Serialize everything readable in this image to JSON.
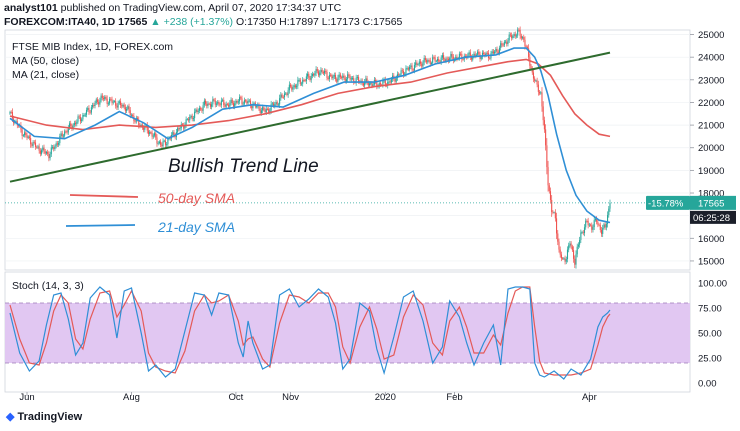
{
  "header": {
    "publisher": "analyst101",
    "published_text": "published on TradingView.com, April 07, 2020 17:34:37 UTC",
    "symbol": "FOREXCOM:ITA40, 1D",
    "last": "17565",
    "change": "▲ +238 (+1.37%)",
    "ohlc_text": "O:17350 H:17897 L:17173 C:17565"
  },
  "legend": {
    "title": "FTSE MIB Index, 1D, FOREX.com",
    "ma50": "MA (50, close)",
    "ma21": "MA (21, close)"
  },
  "annotations": {
    "trend_line": "Bullish Trend Line",
    "sma50": "50-day SMA",
    "sma21": "21-day SMA"
  },
  "stoch_label": "Stoch (14, 3, 3)",
  "badges": {
    "pct": "-15.78%",
    "price": "17565",
    "countdown": "06:25:28"
  },
  "footer": {
    "brand": "TradingView"
  },
  "colors": {
    "up": "#26a69a",
    "down": "#ef5350",
    "ma50": "#e45a58",
    "ma21": "#2f8fd6",
    "trend": "#2e6b2e",
    "stoch_k": "#2f8fd6",
    "stoch_d": "#e45a58",
    "stoch_band": "#e1c7f2",
    "badge_bg": "#26a69a",
    "countdown_bg": "#1b1f2a"
  },
  "chart_data": [
    {
      "type": "candlestick",
      "title": "FTSE MIB Index, 1D, FOREX.com",
      "x_ticks": [
        "Jun",
        "Aug",
        "Oct",
        "Nov",
        "2020",
        "Feb",
        "Apr"
      ],
      "y_ticks": [
        15000,
        16000,
        17000,
        18000,
        19000,
        20000,
        21000,
        22000,
        23000,
        24000,
        25000
      ],
      "ylim": [
        14600,
        25200
      ],
      "last_price": 17565,
      "close_path": [
        [
          0,
          21500
        ],
        [
          10,
          20700
        ],
        [
          22,
          20000
        ],
        [
          32,
          19700
        ],
        [
          45,
          20700
        ],
        [
          60,
          21400
        ],
        [
          75,
          22200
        ],
        [
          85,
          22000
        ],
        [
          95,
          21800
        ],
        [
          105,
          21100
        ],
        [
          115,
          20700
        ],
        [
          125,
          20100
        ],
        [
          135,
          20600
        ],
        [
          148,
          21300
        ],
        [
          160,
          21900
        ],
        [
          170,
          22000
        ],
        [
          180,
          21900
        ],
        [
          190,
          22100
        ],
        [
          200,
          21900
        ],
        [
          210,
          21600
        ],
        [
          220,
          22000
        ],
        [
          230,
          22600
        ],
        [
          242,
          23000
        ],
        [
          255,
          23400
        ],
        [
          265,
          23100
        ],
        [
          278,
          23100
        ],
        [
          290,
          22900
        ],
        [
          302,
          22800
        ],
        [
          312,
          22900
        ],
        [
          325,
          23400
        ],
        [
          340,
          23800
        ],
        [
          355,
          23900
        ],
        [
          370,
          24000
        ],
        [
          385,
          24100
        ],
        [
          396,
          24100
        ],
        [
          403,
          24400
        ],
        [
          410,
          24800
        ],
        [
          418,
          25100
        ],
        [
          423,
          24800
        ],
        [
          426,
          24200
        ],
        [
          430,
          23300
        ],
        [
          433,
          22800
        ],
        [
          437,
          22400
        ],
        [
          440,
          20700
        ],
        [
          443,
          18500
        ],
        [
          446,
          17200
        ],
        [
          449,
          16900
        ],
        [
          452,
          15400
        ],
        [
          455,
          15000
        ],
        [
          458,
          15200
        ],
        [
          461,
          15800
        ],
        [
          465,
          15000
        ],
        [
          470,
          16200
        ],
        [
          475,
          16700
        ],
        [
          479,
          16500
        ],
        [
          483,
          16800
        ],
        [
          487,
          16300
        ],
        [
          490,
          16500
        ],
        [
          494,
          17565
        ]
      ],
      "ma21": [
        [
          0,
          21300
        ],
        [
          20,
          20500
        ],
        [
          45,
          20400
        ],
        [
          70,
          21000
        ],
        [
          90,
          21600
        ],
        [
          110,
          21100
        ],
        [
          130,
          20400
        ],
        [
          150,
          20900
        ],
        [
          175,
          21700
        ],
        [
          200,
          21900
        ],
        [
          225,
          21800
        ],
        [
          250,
          22400
        ],
        [
          275,
          22900
        ],
        [
          300,
          22900
        ],
        [
          325,
          23200
        ],
        [
          350,
          23700
        ],
        [
          375,
          24000
        ],
        [
          400,
          24100
        ],
        [
          415,
          24400
        ],
        [
          425,
          24400
        ],
        [
          432,
          24000
        ],
        [
          437,
          23400
        ],
        [
          443,
          22300
        ],
        [
          450,
          20600
        ],
        [
          458,
          19000
        ],
        [
          466,
          17900
        ],
        [
          475,
          17200
        ],
        [
          485,
          16800
        ],
        [
          494,
          16700
        ]
      ],
      "ma50": [
        [
          0,
          21400
        ],
        [
          30,
          21000
        ],
        [
          60,
          20800
        ],
        [
          90,
          21000
        ],
        [
          120,
          20900
        ],
        [
          150,
          21000
        ],
        [
          180,
          21200
        ],
        [
          210,
          21500
        ],
        [
          240,
          21900
        ],
        [
          270,
          22400
        ],
        [
          300,
          22700
        ],
        [
          330,
          22900
        ],
        [
          360,
          23300
        ],
        [
          390,
          23600
        ],
        [
          410,
          23800
        ],
        [
          425,
          23900
        ],
        [
          435,
          23700
        ],
        [
          445,
          23200
        ],
        [
          455,
          22300
        ],
        [
          465,
          21500
        ],
        [
          475,
          21000
        ],
        [
          485,
          20600
        ],
        [
          494,
          20500
        ]
      ],
      "trend_line": [
        [
          0,
          18500
        ],
        [
          494,
          24200
        ]
      ]
    },
    {
      "type": "line",
      "title": "Stoch (14, 3, 3)",
      "y_ticks": [
        "0.00",
        "25.00",
        "50.00",
        "75.00",
        "100.00"
      ],
      "ylim": [
        0,
        100
      ],
      "band": [
        20,
        80
      ],
      "series": [
        {
          "name": "%K",
          "points": [
            [
              0,
              70
            ],
            [
              8,
              30
            ],
            [
              16,
              12
            ],
            [
              24,
              22
            ],
            [
              30,
              58
            ],
            [
              36,
              88
            ],
            [
              42,
              90
            ],
            [
              48,
              64
            ],
            [
              54,
              28
            ],
            [
              60,
              40
            ],
            [
              66,
              85
            ],
            [
              74,
              96
            ],
            [
              82,
              88
            ],
            [
              88,
              45
            ],
            [
              94,
              92
            ],
            [
              100,
              95
            ],
            [
              108,
              50
            ],
            [
              114,
              12
            ],
            [
              120,
              18
            ],
            [
              128,
              6
            ],
            [
              136,
              14
            ],
            [
              144,
              52
            ],
            [
              152,
              90
            ],
            [
              160,
              88
            ],
            [
              166,
              68
            ],
            [
              172,
              90
            ],
            [
              180,
              88
            ],
            [
              188,
              40
            ],
            [
              192,
              26
            ],
            [
              196,
              62
            ],
            [
              200,
              40
            ],
            [
              208,
              14
            ],
            [
              214,
              18
            ],
            [
              222,
              88
            ],
            [
              230,
              94
            ],
            [
              238,
              76
            ],
            [
              246,
              84
            ],
            [
              254,
              94
            ],
            [
              262,
              86
            ],
            [
              268,
              60
            ],
            [
              274,
              14
            ],
            [
              280,
              24
            ],
            [
              288,
              80
            ],
            [
              296,
              72
            ],
            [
              302,
              34
            ],
            [
              308,
              10
            ],
            [
              316,
              46
            ],
            [
              324,
              86
            ],
            [
              332,
              92
            ],
            [
              340,
              62
            ],
            [
              348,
              20
            ],
            [
              356,
              36
            ],
            [
              362,
              82
            ],
            [
              370,
              66
            ],
            [
              376,
              40
            ],
            [
              382,
              18
            ],
            [
              390,
              40
            ],
            [
              398,
              58
            ],
            [
              404,
              18
            ],
            [
              410,
              94
            ],
            [
              416,
              96
            ],
            [
              422,
              96
            ],
            [
              428,
              94
            ],
            [
              432,
              20
            ],
            [
              436,
              8
            ],
            [
              440,
              6
            ],
            [
              448,
              12
            ],
            [
              456,
              4
            ],
            [
              462,
              14
            ],
            [
              470,
              8
            ],
            [
              478,
              24
            ],
            [
              484,
              56
            ],
            [
              488,
              66
            ],
            [
              492,
              70
            ],
            [
              494,
              73
            ]
          ]
        },
        {
          "name": "%D",
          "points": [
            [
              0,
              78
            ],
            [
              8,
              44
            ],
            [
              16,
              20
            ],
            [
              24,
              18
            ],
            [
              30,
              40
            ],
            [
              36,
              72
            ],
            [
              42,
              88
            ],
            [
              48,
              80
            ],
            [
              54,
              44
            ],
            [
              60,
              34
            ],
            [
              66,
              64
            ],
            [
              74,
              90
            ],
            [
              82,
              92
            ],
            [
              88,
              66
            ],
            [
              94,
              78
            ],
            [
              100,
              92
            ],
            [
              108,
              72
            ],
            [
              114,
              30
            ],
            [
              120,
              16
            ],
            [
              128,
              12
            ],
            [
              136,
              10
            ],
            [
              144,
              32
            ],
            [
              152,
              72
            ],
            [
              160,
              88
            ],
            [
              166,
              80
            ],
            [
              172,
              82
            ],
            [
              180,
              88
            ],
            [
              188,
              62
            ],
            [
              192,
              38
            ],
            [
              196,
              44
            ],
            [
              200,
              46
            ],
            [
              208,
              24
            ],
            [
              214,
              16
            ],
            [
              222,
              60
            ],
            [
              230,
              88
            ],
            [
              238,
              86
            ],
            [
              246,
              80
            ],
            [
              254,
              90
            ],
            [
              262,
              90
            ],
            [
              268,
              76
            ],
            [
              274,
              36
            ],
            [
              280,
              20
            ],
            [
              288,
              56
            ],
            [
              296,
              76
            ],
            [
              302,
              54
            ],
            [
              308,
              24
            ],
            [
              316,
              28
            ],
            [
              324,
              66
            ],
            [
              332,
              88
            ],
            [
              340,
              78
            ],
            [
              348,
              40
            ],
            [
              356,
              28
            ],
            [
              362,
              62
            ],
            [
              370,
              76
            ],
            [
              376,
              56
            ],
            [
              382,
              30
            ],
            [
              390,
              30
            ],
            [
              398,
              48
            ],
            [
              404,
              38
            ],
            [
              410,
              70
            ],
            [
              416,
              92
            ],
            [
              422,
              96
            ],
            [
              428,
              96
            ],
            [
              432,
              56
            ],
            [
              436,
              22
            ],
            [
              440,
              10
            ],
            [
              448,
              8
            ],
            [
              456,
              8
            ],
            [
              462,
              8
            ],
            [
              470,
              10
            ],
            [
              478,
              14
            ],
            [
              484,
              38
            ],
            [
              488,
              56
            ],
            [
              492,
              66
            ],
            [
              494,
              69
            ]
          ]
        }
      ]
    }
  ]
}
